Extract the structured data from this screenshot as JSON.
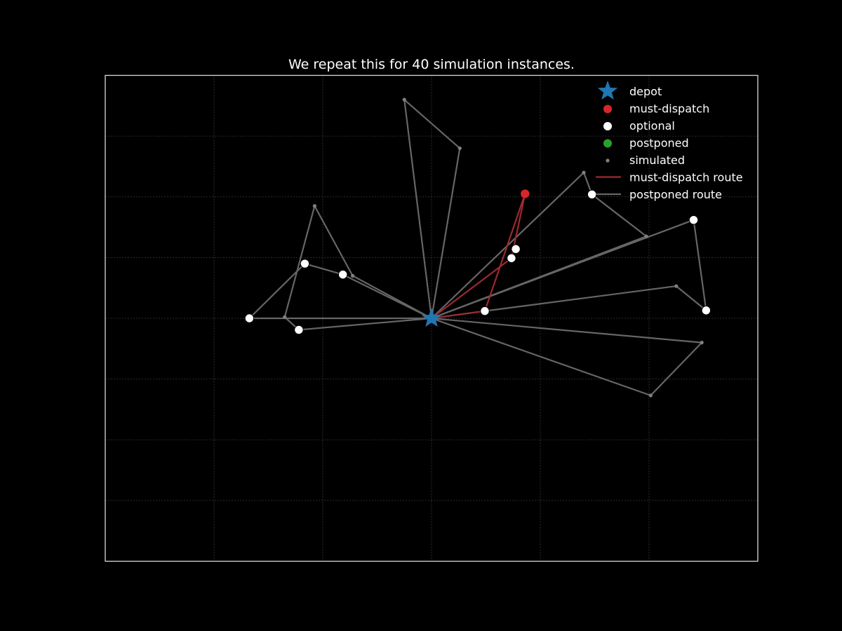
{
  "chart_data": {
    "type": "scatter",
    "title": "We repeat this for 40 simulation instances.",
    "xlabel": "",
    "ylabel": "",
    "xlim": [
      -6,
      6
    ],
    "ylim": [
      -4,
      4
    ],
    "grid": true,
    "legend_position": "top-right",
    "colors": {
      "background": "#000000",
      "depot": "#1f77b4",
      "must_dispatch": "#d62728",
      "optional": "#ffffff",
      "postponed": "#2ca02c",
      "simulated": "#808080",
      "must_dispatch_route": "#9b2a30",
      "postponed_route": "#666666",
      "grid": "#3a3a3a",
      "axes": "#d9d9d9"
    },
    "legend": [
      {
        "label": "depot",
        "marker": "star",
        "color": "#1f77b4"
      },
      {
        "label": "must-dispatch",
        "marker": "dot",
        "color": "#d62728"
      },
      {
        "label": "optional",
        "marker": "dot",
        "color": "#ffffff"
      },
      {
        "label": "postponed",
        "marker": "dot",
        "color": "#2ca02c"
      },
      {
        "label": "simulated",
        "marker": "small-dot",
        "color": "#808080"
      },
      {
        "label": "must-dispatch route",
        "marker": "line",
        "color": "#9b2a30"
      },
      {
        "label": "postponed route",
        "marker": "line",
        "color": "#666666"
      }
    ],
    "series": [
      {
        "name": "depot",
        "points": [
          [
            0,
            0
          ]
        ]
      },
      {
        "name": "must-dispatch",
        "points": [
          [
            1.72,
            2.05
          ]
        ]
      },
      {
        "name": "optional",
        "points": [
          [
            -3.35,
            0
          ],
          [
            -2.44,
            -0.19
          ],
          [
            -2.33,
            0.9
          ],
          [
            -1.63,
            0.72
          ],
          [
            0.98,
            0.12
          ],
          [
            1.47,
            0.99
          ],
          [
            1.55,
            1.14
          ],
          [
            2.95,
            2.04
          ],
          [
            4.82,
            1.62
          ],
          [
            5.05,
            0.13
          ]
        ]
      },
      {
        "name": "postponed",
        "points": []
      },
      {
        "name": "simulated",
        "points": [
          [
            -2.7,
            0.02
          ],
          [
            -2.15,
            1.85
          ],
          [
            -1.45,
            0.7
          ],
          [
            -0.5,
            3.6
          ],
          [
            0.52,
            2.8
          ],
          [
            2.8,
            2.4
          ],
          [
            3.95,
            1.35
          ],
          [
            4.5,
            0.53
          ],
          [
            4.97,
            -0.4
          ],
          [
            4.03,
            -1.27
          ]
        ]
      },
      {
        "name": "must-dispatch route",
        "routes": [
          [
            [
              0,
              0
            ],
            [
              1.47,
              0.99
            ],
            [
              1.72,
              2.05
            ],
            [
              0.98,
              0.12
            ],
            [
              0,
              0
            ]
          ]
        ]
      },
      {
        "name": "postponed route",
        "routes": [
          [
            [
              0,
              0
            ],
            [
              -3.35,
              0
            ],
            [
              -2.33,
              0.9
            ],
            [
              -1.63,
              0.72
            ],
            [
              0,
              0
            ]
          ],
          [
            [
              0,
              0
            ],
            [
              -2.44,
              -0.19
            ],
            [
              -2.7,
              0.02
            ],
            [
              -2.15,
              1.85
            ],
            [
              -1.45,
              0.7
            ],
            [
              0,
              0
            ]
          ],
          [
            [
              0,
              0
            ],
            [
              -0.5,
              3.6
            ],
            [
              0.52,
              2.8
            ],
            [
              0,
              0
            ]
          ],
          [
            [
              0,
              0
            ],
            [
              2.8,
              2.4
            ],
            [
              2.95,
              2.04
            ],
            [
              3.95,
              1.35
            ],
            [
              0,
              0
            ]
          ],
          [
            [
              0,
              0
            ],
            [
              4.82,
              1.62
            ],
            [
              5.05,
              0.13
            ],
            [
              4.5,
              0.53
            ],
            [
              0.98,
              0.12
            ],
            [
              0,
              0
            ]
          ],
          [
            [
              0,
              0
            ],
            [
              4.97,
              -0.4
            ],
            [
              4.03,
              -1.27
            ],
            [
              0,
              0
            ]
          ]
        ]
      }
    ]
  }
}
